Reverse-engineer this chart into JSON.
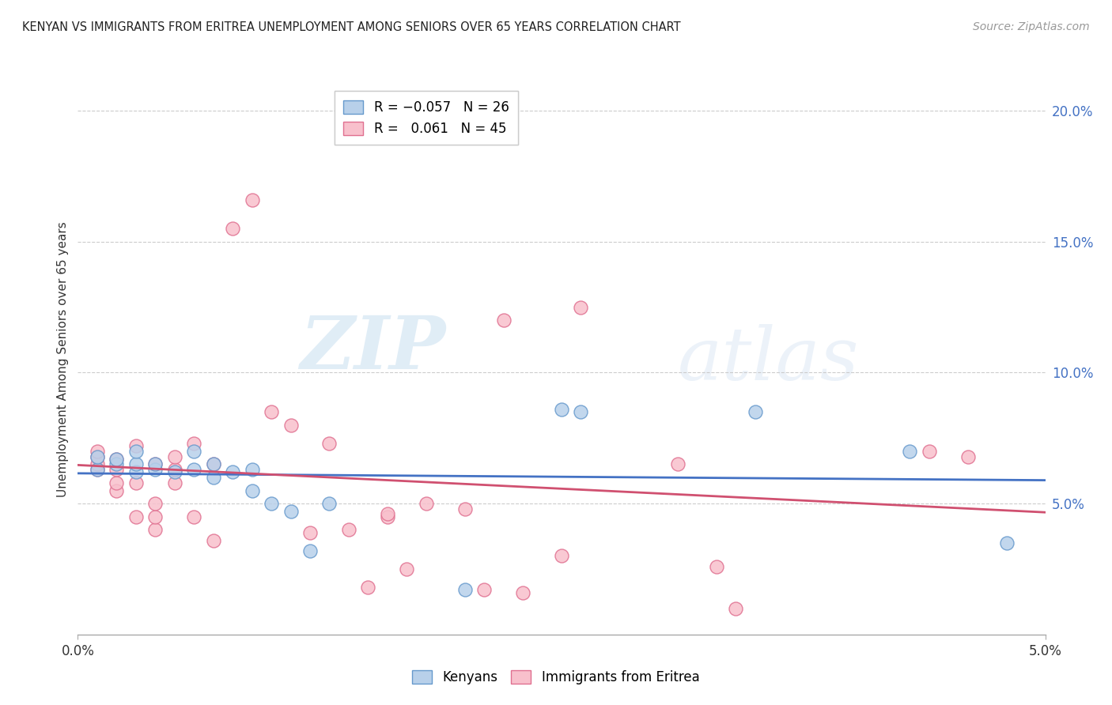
{
  "title": "KENYAN VS IMMIGRANTS FROM ERITREA UNEMPLOYMENT AMONG SENIORS OVER 65 YEARS CORRELATION CHART",
  "source": "Source: ZipAtlas.com",
  "ylabel": "Unemployment Among Seniors over 65 years",
  "xlim": [
    0.0,
    0.05
  ],
  "ylim": [
    0.0,
    0.21
  ],
  "xtick_positions": [
    0.0,
    0.05
  ],
  "xtick_labels": [
    "0.0%",
    "5.0%"
  ],
  "yticks_right": [
    0.05,
    0.1,
    0.15,
    0.2
  ],
  "ytick_labels_right": [
    "5.0%",
    "10.0%",
    "15.0%",
    "20.0%"
  ],
  "legend_labels": [
    "Kenyans",
    "Immigrants from Eritrea"
  ],
  "blue_fill": "#b8d0ea",
  "blue_edge": "#6699cc",
  "pink_fill": "#f8c0cc",
  "pink_edge": "#e07090",
  "blue_trend": "#4472c4",
  "pink_trend": "#d05070",
  "watermark_zip": "ZIP",
  "watermark_atlas": "atlas",
  "kenyan_x": [
    0.001,
    0.001,
    0.002,
    0.002,
    0.003,
    0.003,
    0.003,
    0.004,
    0.004,
    0.005,
    0.006,
    0.006,
    0.007,
    0.007,
    0.008,
    0.009,
    0.009,
    0.01,
    0.011,
    0.012,
    0.013,
    0.02,
    0.025,
    0.026,
    0.035,
    0.043,
    0.048
  ],
  "kenyan_y": [
    0.063,
    0.068,
    0.065,
    0.067,
    0.062,
    0.065,
    0.07,
    0.063,
    0.065,
    0.062,
    0.063,
    0.07,
    0.06,
    0.065,
    0.062,
    0.063,
    0.055,
    0.05,
    0.047,
    0.032,
    0.05,
    0.017,
    0.086,
    0.085,
    0.085,
    0.07,
    0.035
  ],
  "eritrea_x": [
    0.001,
    0.001,
    0.001,
    0.001,
    0.002,
    0.002,
    0.002,
    0.002,
    0.003,
    0.003,
    0.003,
    0.004,
    0.004,
    0.004,
    0.004,
    0.005,
    0.005,
    0.005,
    0.006,
    0.006,
    0.007,
    0.007,
    0.008,
    0.009,
    0.01,
    0.011,
    0.012,
    0.013,
    0.014,
    0.015,
    0.016,
    0.016,
    0.017,
    0.018,
    0.02,
    0.021,
    0.022,
    0.023,
    0.025,
    0.026,
    0.031,
    0.033,
    0.034,
    0.044,
    0.046
  ],
  "eritrea_y": [
    0.063,
    0.065,
    0.068,
    0.07,
    0.055,
    0.058,
    0.063,
    0.067,
    0.045,
    0.058,
    0.072,
    0.04,
    0.045,
    0.05,
    0.065,
    0.058,
    0.063,
    0.068,
    0.045,
    0.073,
    0.036,
    0.065,
    0.155,
    0.166,
    0.085,
    0.08,
    0.039,
    0.073,
    0.04,
    0.018,
    0.045,
    0.046,
    0.025,
    0.05,
    0.048,
    0.017,
    0.12,
    0.016,
    0.03,
    0.125,
    0.065,
    0.026,
    0.01,
    0.07,
    0.068
  ]
}
